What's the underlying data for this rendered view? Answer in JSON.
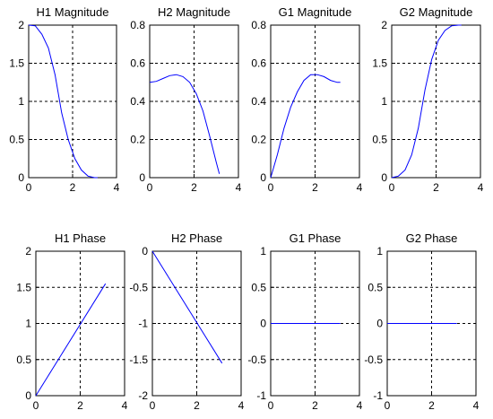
{
  "chart_data": [
    {
      "type": "line",
      "title": "H1 Magnitude",
      "xlim": [
        0,
        4
      ],
      "ylim": [
        0,
        2
      ],
      "xticks": [
        0,
        2,
        4
      ],
      "yticks": [
        0,
        0.5,
        1,
        1.5,
        2
      ],
      "xtick_labels": [
        "0",
        "2",
        "4"
      ],
      "ytick_labels": [
        "0",
        "0.5",
        "1",
        "1.5",
        "2"
      ],
      "grid": "dashed at interior ticks",
      "series": [
        {
          "x": [
            0,
            0.3,
            0.6,
            0.9,
            1.2,
            1.5,
            1.8,
            2.1,
            2.4,
            2.7,
            3.0,
            3.14
          ],
          "y": [
            2.0,
            1.99,
            1.88,
            1.7,
            1.35,
            0.85,
            0.5,
            0.25,
            0.1,
            0.02,
            0.0,
            0.0
          ]
        }
      ]
    },
    {
      "type": "line",
      "title": "H2 Magnitude",
      "xlim": [
        0,
        4
      ],
      "ylim": [
        0,
        0.8
      ],
      "xticks": [
        0,
        2,
        4
      ],
      "yticks": [
        0,
        0.2,
        0.4,
        0.6,
        0.8
      ],
      "xtick_labels": [
        "0",
        "2",
        "4"
      ],
      "ytick_labels": [
        "0",
        "0.2",
        "0.4",
        "0.6",
        "0.8"
      ],
      "grid": "dashed at interior ticks",
      "series": [
        {
          "x": [
            0,
            0.3,
            0.6,
            0.9,
            1.2,
            1.5,
            1.8,
            2.1,
            2.4,
            2.7,
            3.0,
            3.14
          ],
          "y": [
            0.5,
            0.505,
            0.52,
            0.535,
            0.54,
            0.53,
            0.5,
            0.44,
            0.35,
            0.22,
            0.08,
            0.02
          ]
        }
      ]
    },
    {
      "type": "line",
      "title": "G1 Magnitude",
      "xlim": [
        0,
        4
      ],
      "ylim": [
        0,
        0.8
      ],
      "xticks": [
        0,
        2,
        4
      ],
      "yticks": [
        0,
        0.2,
        0.4,
        0.6,
        0.8
      ],
      "xtick_labels": [
        "0",
        "2",
        "4"
      ],
      "ytick_labels": [
        "0",
        "0.2",
        "0.4",
        "0.6",
        "0.8"
      ],
      "grid": "dashed at interior ticks",
      "series": [
        {
          "x": [
            0,
            0.3,
            0.6,
            0.9,
            1.2,
            1.5,
            1.8,
            2.1,
            2.4,
            2.7,
            3.0,
            3.14
          ],
          "y": [
            0.0,
            0.12,
            0.26,
            0.37,
            0.45,
            0.51,
            0.54,
            0.54,
            0.53,
            0.51,
            0.5,
            0.5
          ]
        }
      ]
    },
    {
      "type": "line",
      "title": "G2 Magnitude",
      "xlim": [
        0,
        4
      ],
      "ylim": [
        0,
        2
      ],
      "xticks": [
        0,
        2,
        4
      ],
      "yticks": [
        0,
        0.5,
        1,
        1.5,
        2
      ],
      "xtick_labels": [
        "0",
        "2",
        "4"
      ],
      "ytick_labels": [
        "0",
        "0.5",
        "1",
        "1.5",
        "2"
      ],
      "grid": "dashed at interior ticks",
      "series": [
        {
          "x": [
            0,
            0.3,
            0.6,
            0.9,
            1.2,
            1.5,
            1.8,
            2.1,
            2.4,
            2.7,
            3.0,
            3.14
          ],
          "y": [
            0.0,
            0.02,
            0.1,
            0.3,
            0.65,
            1.15,
            1.55,
            1.8,
            1.93,
            1.99,
            2.0,
            2.0
          ]
        }
      ]
    },
    {
      "type": "line",
      "title": "H1 Phase",
      "xlim": [
        0,
        4
      ],
      "ylim": [
        0,
        2
      ],
      "xticks": [
        0,
        2,
        4
      ],
      "yticks": [
        0,
        0.5,
        1,
        1.5,
        2
      ],
      "xtick_labels": [
        "0",
        "2",
        "4"
      ],
      "ytick_labels": [
        "0",
        "0.5",
        "1",
        "1.5",
        "2"
      ],
      "grid": "dashed at interior ticks",
      "series": [
        {
          "x": [
            0,
            3.14
          ],
          "y": [
            0.0,
            1.55
          ]
        }
      ]
    },
    {
      "type": "line",
      "title": "H2 Phase",
      "xlim": [
        0,
        4
      ],
      "ylim": [
        -2,
        0
      ],
      "xticks": [
        0,
        2,
        4
      ],
      "yticks": [
        -2,
        -1.5,
        -1,
        -0.5,
        0
      ],
      "xtick_labels": [
        "0",
        "2",
        "4"
      ],
      "ytick_labels": [
        "-2",
        "-1.5",
        "-1",
        "-0.5",
        "0"
      ],
      "grid": "dashed at interior ticks",
      "series": [
        {
          "x": [
            0,
            3.14
          ],
          "y": [
            0.0,
            -1.55
          ]
        }
      ]
    },
    {
      "type": "line",
      "title": "G1 Phase",
      "xlim": [
        0,
        4
      ],
      "ylim": [
        -1,
        1
      ],
      "xticks": [
        0,
        2,
        4
      ],
      "yticks": [
        -1,
        -0.5,
        0,
        0.5,
        1
      ],
      "xtick_labels": [
        "0",
        "2",
        "4"
      ],
      "ytick_labels": [
        "-1",
        "-0.5",
        "0",
        "0.5",
        "1"
      ],
      "grid": "dashed at interior ticks",
      "series": [
        {
          "x": [
            0,
            3.14
          ],
          "y": [
            0.0,
            0.0
          ]
        }
      ]
    },
    {
      "type": "line",
      "title": "G2 Phase",
      "xlim": [
        0,
        4
      ],
      "ylim": [
        -1,
        1
      ],
      "xticks": [
        0,
        2,
        4
      ],
      "yticks": [
        -1,
        -0.5,
        0,
        0.5,
        1
      ],
      "xtick_labels": [
        "0",
        "2",
        "4"
      ],
      "ytick_labels": [
        "-1",
        "-0.5",
        "0",
        "0.5",
        "1"
      ],
      "grid": "dashed at interior ticks",
      "series": [
        {
          "x": [
            0,
            3.14
          ],
          "y": [
            0.0,
            0.0
          ]
        }
      ]
    }
  ],
  "colors": {
    "line": "#0000ff",
    "axes": "#000000",
    "grid": "#000000"
  }
}
